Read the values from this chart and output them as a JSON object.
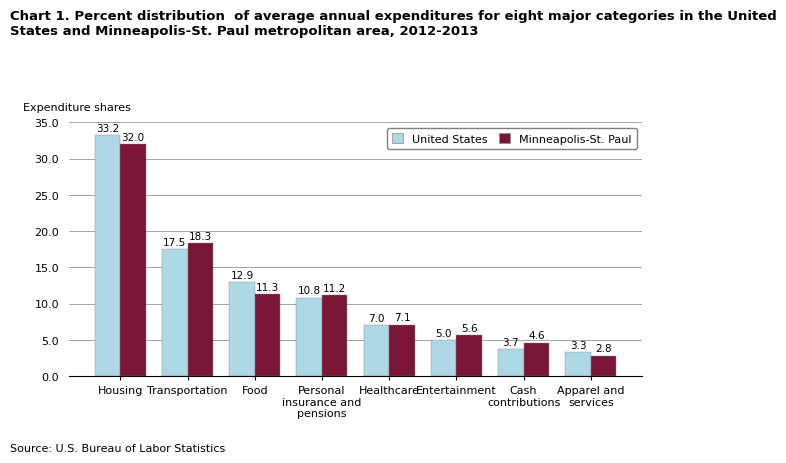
{
  "title_line1": "Chart 1. Percent distribution  of average annual expenditures for eight major categories in the United",
  "title_line2": "States and Minneapolis-St. Paul metropolitan area, 2012-2013",
  "ylabel": "Expenditure shares",
  "source": "Source: U.S. Bureau of Labor Statistics",
  "categories": [
    "Housing",
    "Transportation",
    "Food",
    "Personal\ninsurance and\npensions",
    "Healthcare",
    "Entertainment",
    "Cash\ncontributions",
    "Apparel and\nservices"
  ],
  "us_values": [
    33.2,
    17.5,
    12.9,
    10.8,
    7.0,
    5.0,
    3.7,
    3.3
  ],
  "msp_values": [
    32.0,
    18.3,
    11.3,
    11.2,
    7.1,
    5.6,
    4.6,
    2.8
  ],
  "us_color": "#add8e6",
  "msp_color": "#7b1535",
  "us_label": "United States",
  "msp_label": "Minneapolis-St. Paul",
  "ylim": [
    0,
    35.0
  ],
  "yticks": [
    0.0,
    5.0,
    10.0,
    15.0,
    20.0,
    25.0,
    30.0,
    35.0
  ],
  "bar_width": 0.38,
  "label_fontsize": 7.5,
  "tick_fontsize": 8,
  "title_fontsize": 9.5,
  "ylabel_fontsize": 8,
  "source_fontsize": 8
}
